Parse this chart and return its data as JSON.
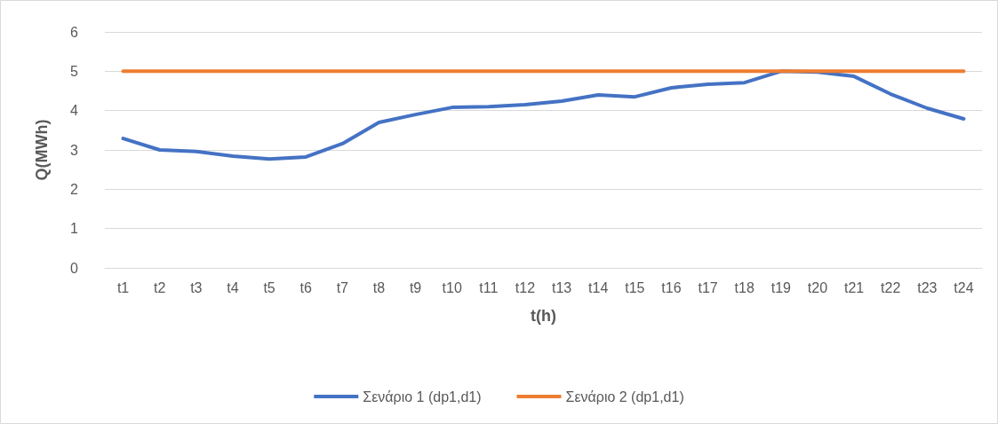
{
  "chart_data": {
    "type": "line",
    "xlabel": "t(h)",
    "ylabel": "Q(MWh)",
    "categories": [
      "t1",
      "t2",
      "t3",
      "t4",
      "t5",
      "t6",
      "t7",
      "t8",
      "t9",
      "t10",
      "t11",
      "t12",
      "t13",
      "t14",
      "t15",
      "t16",
      "t17",
      "t18",
      "t19",
      "t20",
      "t21",
      "t22",
      "t23",
      "t24"
    ],
    "series": [
      {
        "name": "Σενάριο 1 (dp1,d1)",
        "color": "#4472c4",
        "values": [
          3.29,
          3.0,
          2.96,
          2.84,
          2.77,
          2.82,
          3.16,
          3.7,
          3.9,
          4.08,
          4.1,
          4.15,
          4.24,
          4.4,
          4.35,
          4.58,
          4.67,
          4.71,
          5.0,
          4.98,
          4.87,
          4.42,
          4.06,
          3.79
        ]
      },
      {
        "name": "Σενάριο 2 (dp1,d1)",
        "color": "#ed7d31",
        "values": [
          5,
          5,
          5,
          5,
          5,
          5,
          5,
          5,
          5,
          5,
          5,
          5,
          5,
          5,
          5,
          5,
          5,
          5,
          5,
          5,
          5,
          5,
          5,
          5
        ]
      }
    ],
    "ylim": [
      0,
      6
    ],
    "yticks": [
      0,
      1,
      2,
      3,
      4,
      5,
      6
    ],
    "grid": "y",
    "legend": "bottom",
    "marker": "none",
    "line_style": "solid"
  }
}
